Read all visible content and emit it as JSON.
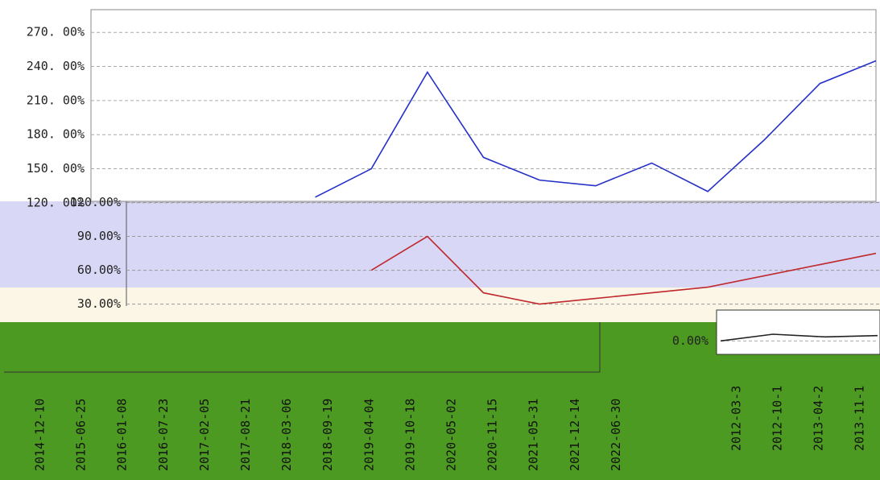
{
  "chart_data": [
    {
      "type": "line",
      "categories": [
        "2014-12-10",
        "2015-06-25",
        "2016-01-08",
        "2016-07-23",
        "2017-02-05",
        "2017-08-21",
        "2018-03-06",
        "2018-09-19",
        "2019-04-04",
        "2019-10-18",
        "2020-05-02",
        "2020-11-15",
        "2021-05-31",
        "2021-12-14",
        "2022-06-30"
      ],
      "series": [
        {
          "color": "#2430c8",
          "values": [
            null,
            null,
            null,
            null,
            125,
            150,
            235,
            160,
            140,
            135,
            155,
            130,
            175,
            225,
            245
          ]
        },
        {
          "color": "#c0282e",
          "axis": "y2",
          "values": [
            null,
            null,
            null,
            null,
            null,
            60,
            90,
            40,
            30,
            35,
            40,
            45,
            55,
            65,
            75
          ]
        }
      ],
      "ylim": [
        15,
        290
      ],
      "yticks": [
        {
          "value": 120,
          "label": "120. 00%"
        },
        {
          "value": 150,
          "label": "150. 00%"
        },
        {
          "value": 180,
          "label": "180. 00%"
        },
        {
          "value": 210,
          "label": "210. 00%"
        },
        {
          "value": 240,
          "label": "240. 00%"
        },
        {
          "value": 270,
          "label": "270. 00%"
        }
      ],
      "y2lim": [
        14,
        291
      ],
      "y2ticks": [
        {
          "value": 30,
          "label": "30.00%"
        },
        {
          "value": 60,
          "label": "60.00%"
        },
        {
          "value": 90,
          "label": "90.00%"
        },
        {
          "value": 120,
          "label": "120.00%"
        }
      ],
      "grid": true
    },
    {
      "type": "line",
      "categories": [
        "2012-03-3",
        "2012-10-1",
        "2013-04-2",
        "2013-11-1"
      ],
      "series": [
        {
          "color": "#222222",
          "values": [
            0,
            5,
            3,
            4
          ]
        }
      ],
      "ylim": [
        -10,
        20
      ],
      "yticks": [
        {
          "value": 0,
          "label": "0.00%"
        }
      ],
      "grid": true
    }
  ]
}
